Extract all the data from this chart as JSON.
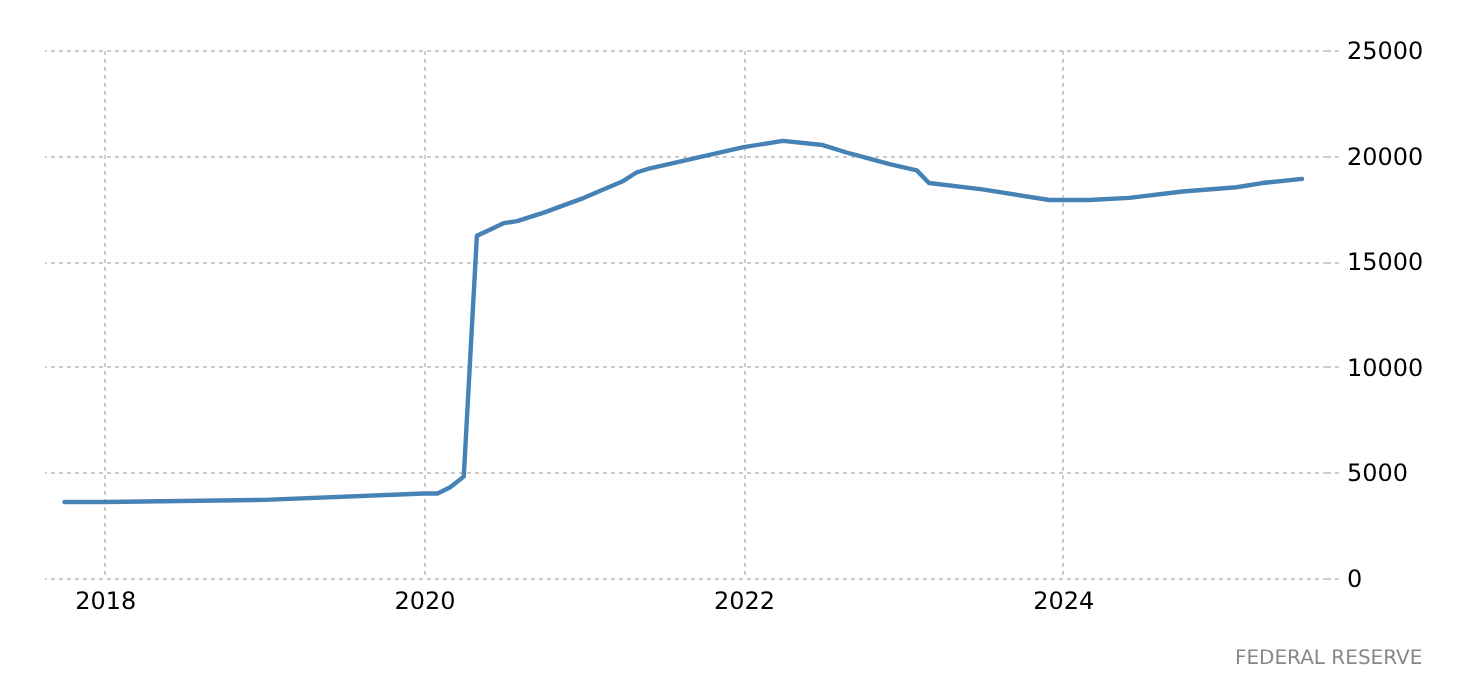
{
  "chart_data": {
    "type": "line",
    "x": [
      "2017-10",
      "2018-01",
      "2019-01",
      "2020-01",
      "2020-02",
      "2020-03",
      "2020-04",
      "2020-05",
      "2020-06",
      "2020-07",
      "2020-08",
      "2020-10",
      "2021-01",
      "2021-04",
      "2021-05",
      "2021-06",
      "2022-01",
      "2022-04",
      "2022-07",
      "2022-09",
      "2022-12",
      "2023-02",
      "2023-03",
      "2023-07",
      "2023-12",
      "2024-03",
      "2024-06",
      "2024-10",
      "2025-02",
      "2025-04",
      "2025-07"
    ],
    "series": [
      {
        "color": "#4682b4",
        "values": [
          3600,
          3600,
          3700,
          4000,
          4000,
          4300,
          4800,
          16200,
          16500,
          16800,
          16900,
          17300,
          18000,
          18800,
          19200,
          19400,
          20400,
          20700,
          20500,
          20100,
          19600,
          19300,
          18700,
          18400,
          17900,
          17900,
          18000,
          18300,
          18500,
          18700,
          18900
        ]
      }
    ],
    "xlim": [
      "2017-08-15",
      "2025-08-25"
    ],
    "xticks": [
      "2018",
      "2020",
      "2022",
      "2024"
    ],
    "ylim": [
      0,
      25000
    ],
    "yticks": [
      0,
      5000,
      10000,
      15000,
      20000,
      25000
    ],
    "grid": true,
    "annotations": [
      "FEDERAL RESERVE"
    ]
  }
}
